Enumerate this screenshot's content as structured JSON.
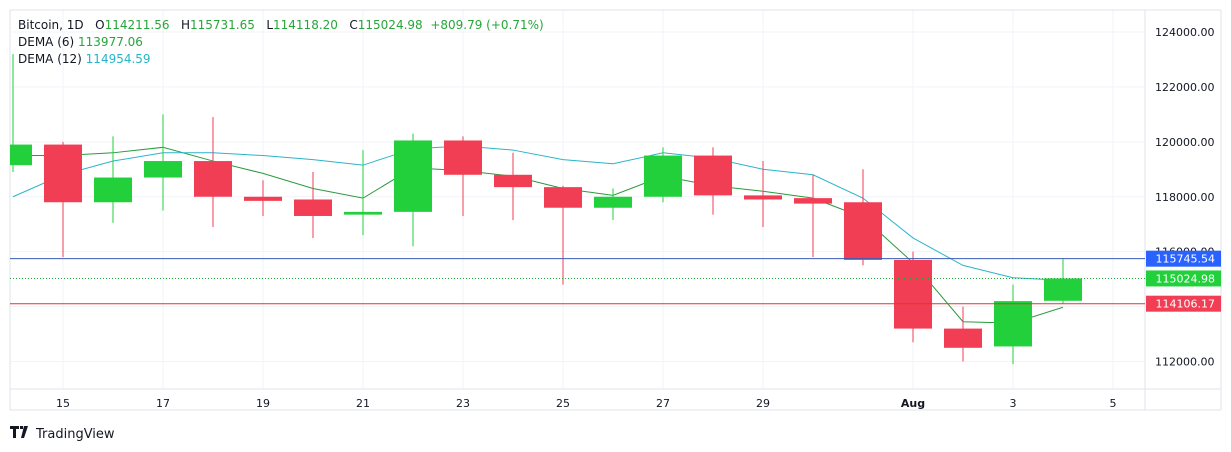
{
  "legend": {
    "symbol": "Bitcoin",
    "interval": "1D",
    "open_label": "O",
    "open": "114211.56",
    "high_label": "H",
    "high": "115731.65",
    "low_label": "L",
    "low": "114118.20",
    "close_label": "C",
    "close": "115024.98",
    "change": "+809.79 (+0.71%)",
    "dema6_label": "DEMA (6)",
    "dema6_value": "113977.06",
    "dema12_label": "DEMA (12)",
    "dema12_value": "114954.59"
  },
  "brand": "TradingView",
  "colors": {
    "up": "#22d03c",
    "down": "#f23e54",
    "dema6": "#2b9a3c",
    "dema12": "#2bb4c8",
    "grid": "#f0f3fa",
    "axis_text": "#131722",
    "axis_line": "#e0e3eb",
    "tag_blue": "#2962ff",
    "tag_green": "#22d03c",
    "tag_red": "#f23e54",
    "line_blue": "#3a5bb8",
    "line_red": "#e0352b"
  },
  "chart_data": {
    "type": "candlestick",
    "x_tick_labels": [
      "15",
      "17",
      "19",
      "21",
      "23",
      "25",
      "27",
      "29",
      "Aug",
      "3",
      "5"
    ],
    "x_tick_index": [
      1,
      3,
      5,
      7,
      9,
      11,
      13,
      15,
      18,
      20,
      22
    ],
    "y_ticks": [
      112000,
      114000,
      116000,
      118000,
      120000,
      122000,
      124000
    ],
    "y_tick_labels": [
      "112000.00",
      "114000.00",
      "116000.00",
      "118000.00",
      "120000.00",
      "122000.00",
      "124000.00"
    ],
    "ylim": [
      111000,
      124800
    ],
    "candles": [
      {
        "o": 119150,
        "h": 123200,
        "l": 118900,
        "c": 119900
      },
      {
        "o": 119900,
        "h": 120000,
        "l": 115800,
        "c": 117800
      },
      {
        "o": 117800,
        "h": 120200,
        "l": 117050,
        "c": 118700
      },
      {
        "o": 118700,
        "h": 121000,
        "l": 117500,
        "c": 119300
      },
      {
        "o": 119300,
        "h": 120900,
        "l": 116900,
        "c": 118000
      },
      {
        "o": 118000,
        "h": 118600,
        "l": 117300,
        "c": 117850
      },
      {
        "o": 117900,
        "h": 118900,
        "l": 116500,
        "c": 117300
      },
      {
        "o": 117350,
        "h": 119700,
        "l": 116600,
        "c": 117450
      },
      {
        "o": 117450,
        "h": 120300,
        "l": 116200,
        "c": 120050
      },
      {
        "o": 120050,
        "h": 120200,
        "l": 117300,
        "c": 118800
      },
      {
        "o": 118800,
        "h": 119600,
        "l": 117150,
        "c": 118350
      },
      {
        "o": 118350,
        "h": 118400,
        "l": 114800,
        "c": 117600
      },
      {
        "o": 117600,
        "h": 118300,
        "l": 117150,
        "c": 118000
      },
      {
        "o": 118000,
        "h": 119800,
        "l": 117800,
        "c": 119500
      },
      {
        "o": 119500,
        "h": 119800,
        "l": 117350,
        "c": 118050
      },
      {
        "o": 118050,
        "h": 119300,
        "l": 116900,
        "c": 117900
      },
      {
        "o": 117950,
        "h": 118800,
        "l": 115800,
        "c": 117750
      },
      {
        "o": 117800,
        "h": 119000,
        "l": 115500,
        "c": 115700
      },
      {
        "o": 115700,
        "h": 116000,
        "l": 112700,
        "c": 113200
      },
      {
        "o": 113200,
        "h": 114000,
        "l": 112000,
        "c": 112500
      },
      {
        "o": 112550,
        "h": 114800,
        "l": 111900,
        "c": 114200
      },
      {
        "o": 114211.56,
        "h": 115731.65,
        "l": 114118.2,
        "c": 115024.98
      }
    ],
    "series": [
      {
        "name": "DEMA (6)",
        "values": [
          119500,
          119500,
          119600,
          119800,
          119300,
          118850,
          118300,
          117950,
          119050,
          118950,
          118750,
          118300,
          118050,
          118750,
          118400,
          118200,
          117950,
          117250,
          115600,
          113450,
          113400,
          113977.06
        ]
      },
      {
        "name": "DEMA (12)",
        "values": [
          118000,
          118800,
          119300,
          119600,
          119600,
          119500,
          119350,
          119150,
          119750,
          119850,
          119700,
          119350,
          119200,
          119600,
          119400,
          119000,
          118800,
          117950,
          116500,
          115500,
          115050,
          114954.59
        ]
      }
    ],
    "price_lines": [
      {
        "label": "115745.54",
        "value": 115745.54,
        "style": "solid",
        "color": "#3a5bb8",
        "tag": "#2962ff"
      },
      {
        "label": "115024.98",
        "value": 115024.98,
        "style": "dotted",
        "color": "#22a83a",
        "tag": "#22d03c"
      },
      {
        "label": "114106.17",
        "value": 114106.17,
        "style": "solid",
        "color": "#e0352b",
        "tag": "#f23e54"
      }
    ]
  }
}
